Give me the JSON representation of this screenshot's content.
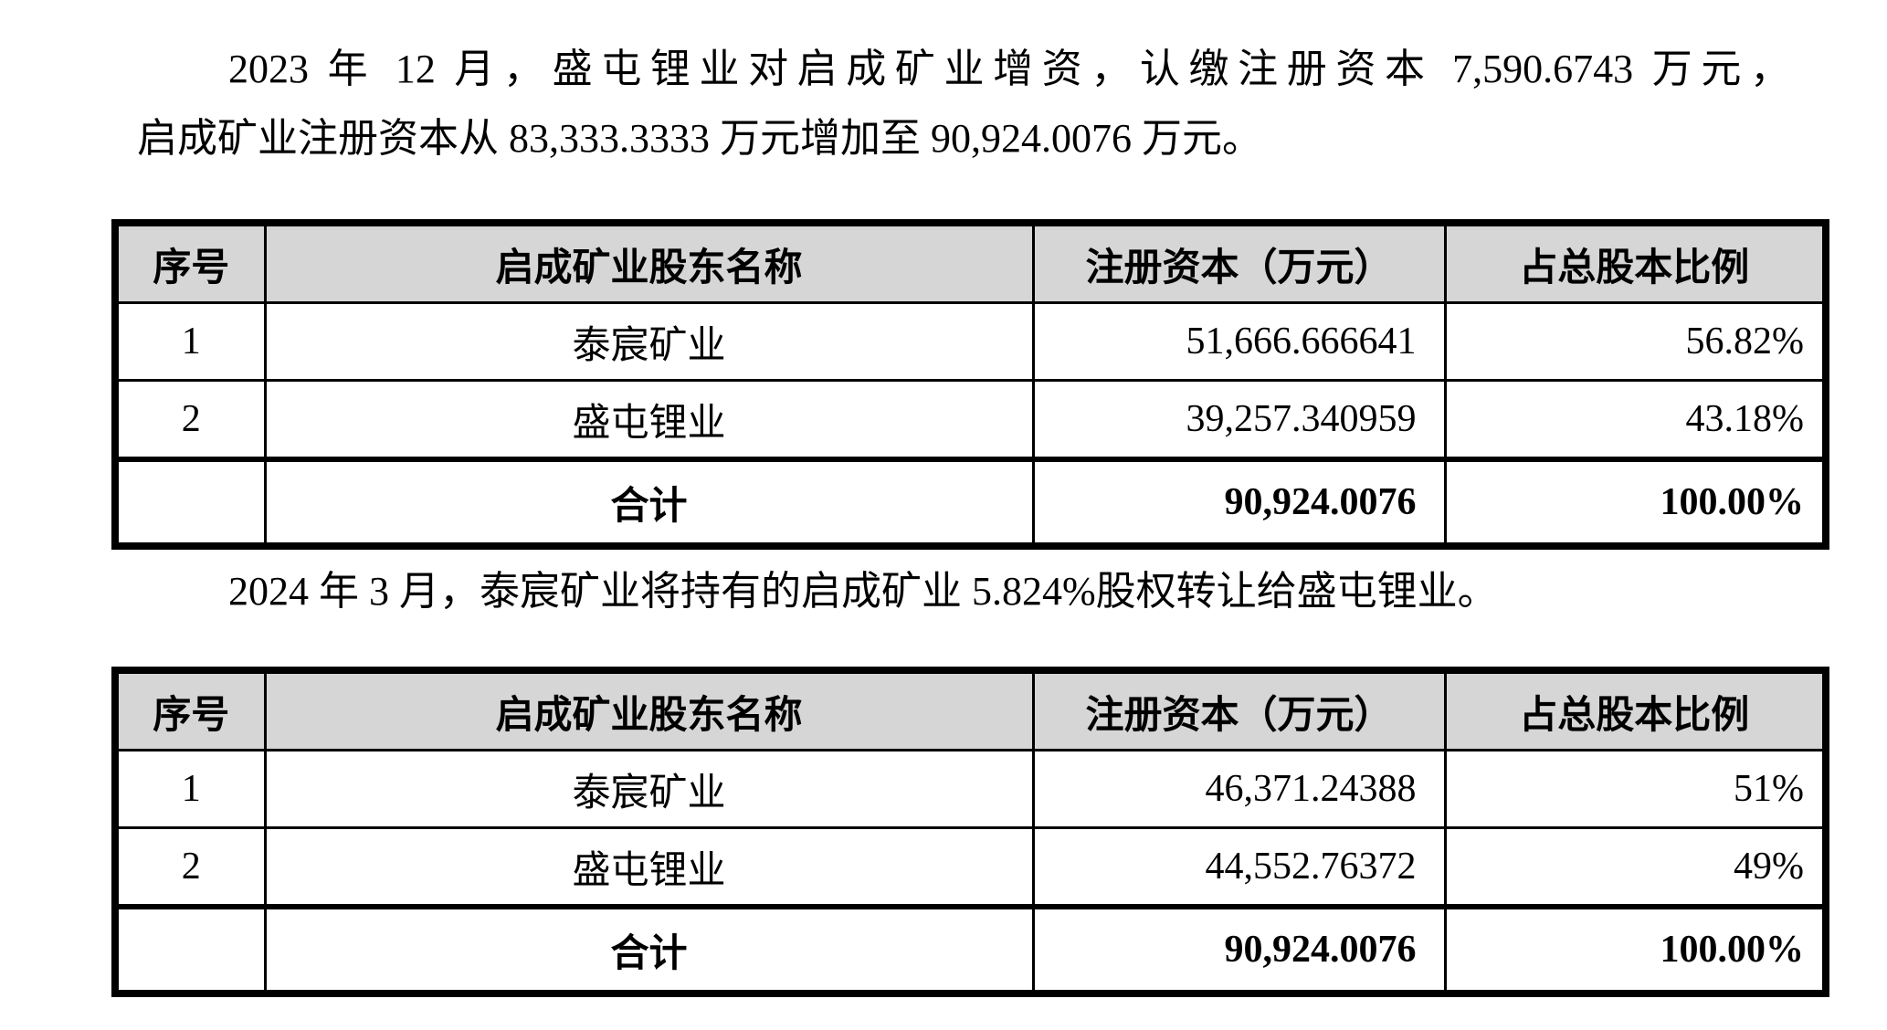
{
  "document": {
    "paragraph_2023": {
      "line1": "2023 年 12 月，盛屯锂业对启成矿业增资，认缴注册资本 7,590.6743 万元，",
      "line2": "启成矿业注册资本从 83,333.3333 万元增加至 90,924.0076 万元。"
    },
    "paragraph_2024": "2024 年 3 月，泰宸矿业将持有的启成矿业 5.824%股权转让给盛屯锂业。"
  },
  "table_2023": {
    "headers": [
      "序号",
      "启成矿业股东名称",
      "注册资本（万元）",
      "占总股本比例"
    ],
    "rows": [
      {
        "no": "1",
        "name": "泰宸矿业",
        "capital": "51,666.666641",
        "ratio": "56.82%"
      },
      {
        "no": "2",
        "name": "盛屯锂业",
        "capital": "39,257.340959",
        "ratio": "43.18%"
      }
    ],
    "total": {
      "no": "",
      "label": "合计",
      "capital": "90,924.0076",
      "ratio": "100.00%"
    }
  },
  "table_2024": {
    "headers": [
      "序号",
      "启成矿业股东名称",
      "注册资本（万元）",
      "占总股本比例"
    ],
    "rows": [
      {
        "no": "1",
        "name": "泰宸矿业",
        "capital": "46,371.24388",
        "ratio": "51%"
      },
      {
        "no": "2",
        "name": "盛屯锂业",
        "capital": "44,552.76372",
        "ratio": "49%"
      }
    ],
    "total": {
      "no": "",
      "label": "合计",
      "capital": "90,924.0076",
      "ratio": "100.00%"
    }
  },
  "colors": {
    "page_bg": "#ffffff",
    "text": "#000000",
    "table_border": "#000000",
    "header_bg": "#d6d6d6"
  }
}
